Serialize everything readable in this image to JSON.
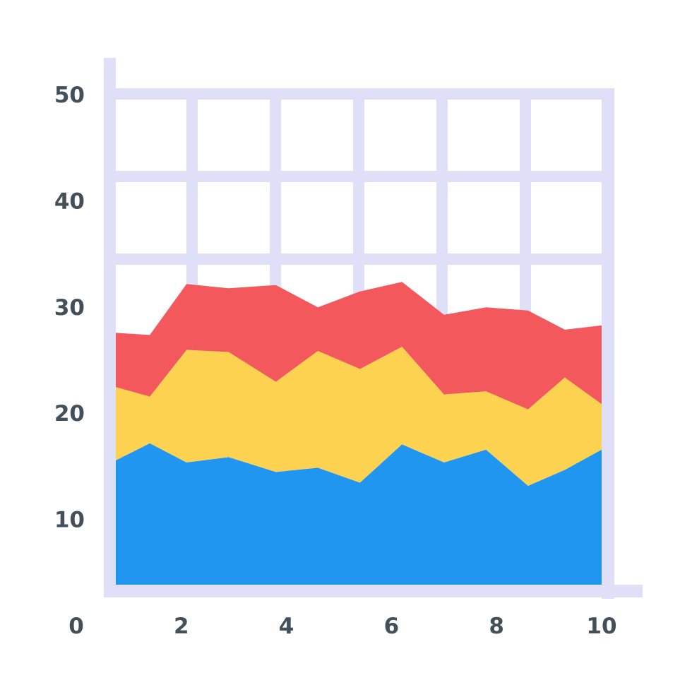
{
  "chart_data": {
    "type": "area",
    "stacked": true,
    "title": "",
    "xlabel": "",
    "ylabel": "",
    "xlim": [
      0,
      10
    ],
    "ylim": [
      0,
      50
    ],
    "grid": true,
    "x_tick_labels": [
      "0",
      "2",
      "4",
      "6",
      "8",
      "10"
    ],
    "y_tick_labels": [
      "10",
      "20",
      "30",
      "40",
      "50"
    ],
    "x": [
      0.8,
      1.4,
      2.1,
      2.9,
      3.8,
      4.6,
      5.4,
      6.2,
      7.0,
      7.8,
      8.6,
      9.3,
      10.0
    ],
    "series": [
      {
        "color": "#2196f0",
        "values": [
          15.5,
          17.1,
          15.3,
          15.8,
          14.4,
          14.8,
          13.4,
          17.0,
          15.3,
          16.5,
          13.1,
          14.6,
          16.5
        ]
      },
      {
        "color": "#fdd251",
        "values": [
          6.9,
          4.4,
          10.6,
          9.9,
          8.5,
          11.0,
          10.7,
          9.2,
          6.4,
          5.5,
          7.2,
          8.7,
          4.3
        ]
      },
      {
        "color": "#f2585c",
        "values": [
          5.1,
          5.8,
          6.2,
          6.0,
          9.1,
          4.1,
          7.3,
          6.1,
          7.5,
          7.9,
          9.3,
          4.5,
          7.4
        ]
      }
    ],
    "colors": {
      "grid": "#dfdff8",
      "axis": "#dfdff8",
      "tick_text": "#435059"
    }
  }
}
